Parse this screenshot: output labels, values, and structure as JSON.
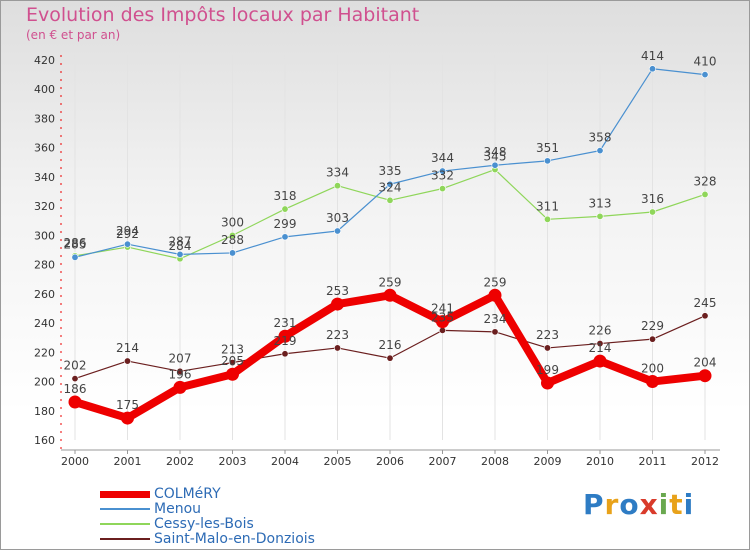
{
  "title": "Evolution des Impôts locaux par Habitant",
  "subtitle": "(en € et par an)",
  "brand": {
    "text": "Proxiti",
    "letter_colors": [
      "#2e7cc4",
      "#e8a21a",
      "#2e7cc4",
      "#d93b2b",
      "#6aa84f",
      "#e8a21a",
      "#2e7cc4"
    ]
  },
  "chart_data": {
    "type": "line",
    "title": "Evolution des Impôts locaux par Habitant",
    "subtitle": "(en € et par an)",
    "x": [
      "2000",
      "2001",
      "2002",
      "2003",
      "2004",
      "2005",
      "2006",
      "2007",
      "2008",
      "2009",
      "2010",
      "2011",
      "2012"
    ],
    "ylim": [
      160,
      420
    ],
    "yticks": [
      160,
      180,
      200,
      220,
      240,
      260,
      280,
      300,
      320,
      340,
      360,
      380,
      400,
      420
    ],
    "grid": "vertical",
    "legend_position": "bottom-left",
    "series": [
      {
        "name": "COLMéRY",
        "color": "#ee0000",
        "values": [
          186,
          175,
          196,
          205,
          231,
          253,
          259,
          241,
          259,
          199,
          214,
          200,
          204
        ],
        "labels": [
          "186",
          "175",
          "196",
          "205",
          "231",
          "253",
          "259",
          "241",
          "259",
          "199",
          "214",
          "200",
          "204"
        ]
      },
      {
        "name": "Menou",
        "color": "#4a90d0",
        "values": [
          285,
          294,
          287,
          288,
          299,
          303,
          335,
          344,
          348,
          351,
          358,
          414,
          410
        ],
        "labels": [
          "285",
          "294",
          "287",
          "288",
          "299",
          "303",
          "335",
          "344",
          "348",
          "351",
          "358",
          "414",
          "410"
        ]
      },
      {
        "name": "Cessy-les-Bois",
        "color": "#8fd65a",
        "values": [
          286,
          292,
          284,
          300,
          318,
          334,
          324,
          332,
          345,
          311,
          313,
          316,
          328
        ],
        "labels": [
          "286",
          "292",
          "284",
          "300",
          "318",
          "334",
          "324",
          "332",
          "345",
          "311",
          "313",
          "316",
          "328"
        ]
      },
      {
        "name": "Saint-Malo-en-Donziois",
        "color": "#6b1f1f",
        "values": [
          202,
          214,
          207,
          213,
          219,
          223,
          216,
          235,
          234,
          223,
          226,
          229,
          245
        ],
        "labels": [
          "202",
          "214",
          "207",
          "213",
          "219",
          "223",
          "216",
          "235",
          "234",
          "223",
          "226",
          "229",
          "245"
        ]
      }
    ]
  }
}
